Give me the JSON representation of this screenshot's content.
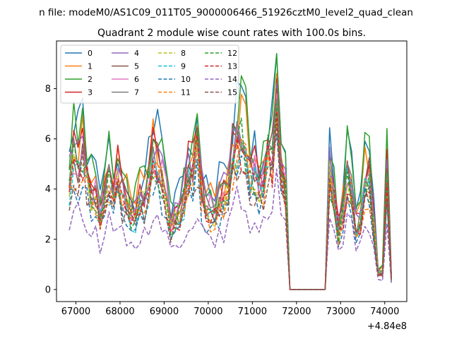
{
  "chart_data": {
    "type": "line",
    "suptitle": "n file: modeM0/AS1C09_011T05_9000006466_51926cztM0_level2_quad_clean",
    "title": "Quadrant 2 module wise count rates with 100.0s bins.",
    "xlabel": "",
    "ylabel": "",
    "x_offset_label": "+4.84e8",
    "xlim": [
      66560,
      74500
    ],
    "ylim": [
      -0.48,
      9.9
    ],
    "x_ticks": [
      67000,
      68000,
      69000,
      70000,
      71000,
      72000,
      73000,
      74000
    ],
    "x_tick_labels": [
      "67000",
      "68000",
      "69000",
      "70000",
      "71000",
      "72000",
      "73000",
      "74000"
    ],
    "y_ticks": [
      0,
      2,
      4,
      6,
      8
    ],
    "y_tick_labels": [
      "0",
      "2",
      "4",
      "6",
      "8"
    ],
    "legend_position": "top-left",
    "legend_columns": 4,
    "bins": [
      {
        "start": 66850,
        "end": 68000,
        "step": 100
      },
      {
        "start": 68050,
        "end": 71950,
        "step": 100
      },
      {
        "start": 72650,
        "end": 74150,
        "step": 100
      }
    ],
    "gap": {
      "x_start": 71850,
      "x_end": 72650
    },
    "series": [
      {
        "name": "0",
        "color": "#1f77b4",
        "dashed": false,
        "scale": 1.08,
        "peak": 9.4,
        "seed": 1
      },
      {
        "name": "1",
        "color": "#ff7f0e",
        "dashed": false,
        "scale": 1.0,
        "peak": 8.6,
        "seed": 2
      },
      {
        "name": "2",
        "color": "#2ca02c",
        "dashed": false,
        "scale": 1.06,
        "peak": 9.4,
        "seed": 3
      },
      {
        "name": "3",
        "color": "#d62728",
        "dashed": false,
        "scale": 0.96,
        "peak": 8.4,
        "seed": 4
      },
      {
        "name": "4",
        "color": "#9467bd",
        "dashed": false,
        "scale": 0.93,
        "peak": 8.2,
        "seed": 5
      },
      {
        "name": "5",
        "color": "#8c564b",
        "dashed": false,
        "scale": 0.9,
        "peak": 8.0,
        "seed": 6
      },
      {
        "name": "6",
        "color": "#e377c2",
        "dashed": false,
        "scale": 0.88,
        "peak": 7.8,
        "seed": 7
      },
      {
        "name": "7",
        "color": "#7f7f7f",
        "dashed": false,
        "scale": 0.86,
        "peak": 7.6,
        "seed": 8
      },
      {
        "name": "8",
        "color": "#bcbd22",
        "dashed": true,
        "scale": 0.82,
        "peak": 7.2,
        "seed": 9
      },
      {
        "name": "9",
        "color": "#17becf",
        "dashed": true,
        "scale": 0.79,
        "peak": 7.0,
        "seed": 10
      },
      {
        "name": "10",
        "color": "#1f77b4",
        "dashed": true,
        "scale": 0.7,
        "peak": 6.2,
        "seed": 11
      },
      {
        "name": "11",
        "color": "#ff7f0e",
        "dashed": true,
        "scale": 0.76,
        "peak": 6.8,
        "seed": 12
      },
      {
        "name": "12",
        "color": "#2ca02c",
        "dashed": true,
        "scale": 0.84,
        "peak": 7.4,
        "seed": 13
      },
      {
        "name": "13",
        "color": "#d62728",
        "dashed": true,
        "scale": 0.8,
        "peak": 7.1,
        "seed": 14
      },
      {
        "name": "14",
        "color": "#9467bd",
        "dashed": true,
        "scale": 0.52,
        "peak": 4.8,
        "seed": 15
      },
      {
        "name": "15",
        "color": "#8c564b",
        "dashed": true,
        "scale": 0.74,
        "peak": 6.6,
        "seed": 16
      }
    ]
  }
}
